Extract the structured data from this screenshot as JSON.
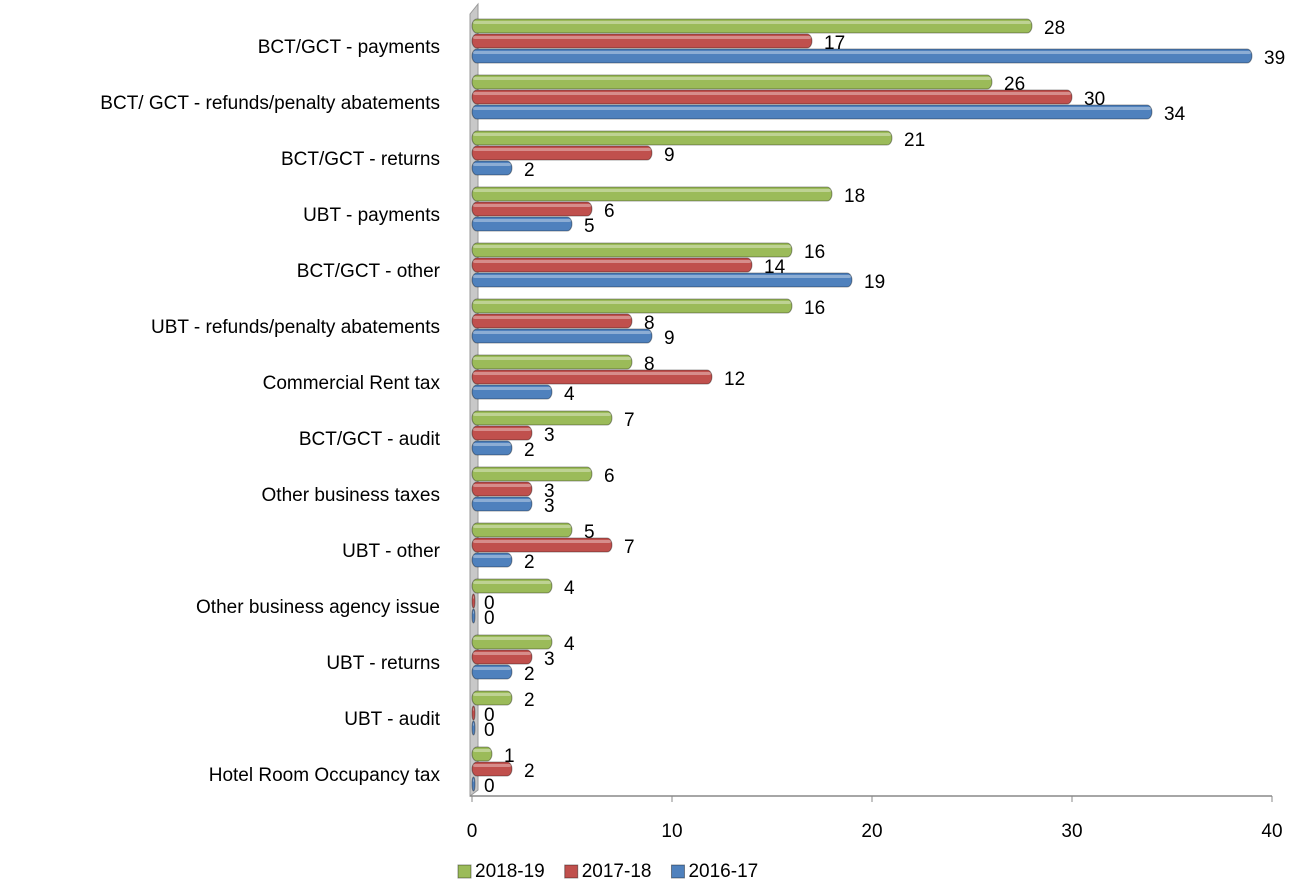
{
  "chart_data": {
    "type": "bar",
    "orientation": "horizontal",
    "categories": [
      "BCT/GCT - payments",
      "BCT/ GCT - refunds/penalty abatements",
      "BCT/GCT - returns",
      "UBT - payments",
      "BCT/GCT - other",
      "UBT - refunds/penalty abatements",
      "Commercial Rent tax",
      "BCT/GCT - audit",
      "Other business taxes",
      "UBT - other",
      "Other business agency issue",
      "UBT - returns",
      "UBT - audit",
      "Hotel Room Occupancy tax"
    ],
    "series": [
      {
        "name": "2018-19",
        "color": "#9bbb59",
        "values": [
          28,
          26,
          21,
          18,
          16,
          16,
          8,
          7,
          6,
          5,
          4,
          4,
          2,
          1
        ]
      },
      {
        "name": "2017-18",
        "color": "#c0504d",
        "values": [
          17,
          30,
          9,
          6,
          14,
          8,
          12,
          3,
          3,
          7,
          0,
          3,
          0,
          2
        ]
      },
      {
        "name": "2016-17",
        "color": "#4f81bd",
        "values": [
          39,
          34,
          2,
          5,
          19,
          9,
          4,
          2,
          3,
          2,
          0,
          2,
          0,
          0
        ]
      }
    ],
    "xlim": [
      0,
      40
    ],
    "xticks": [
      0,
      10,
      20,
      30,
      40
    ],
    "grid": false,
    "legend": "bottom"
  }
}
